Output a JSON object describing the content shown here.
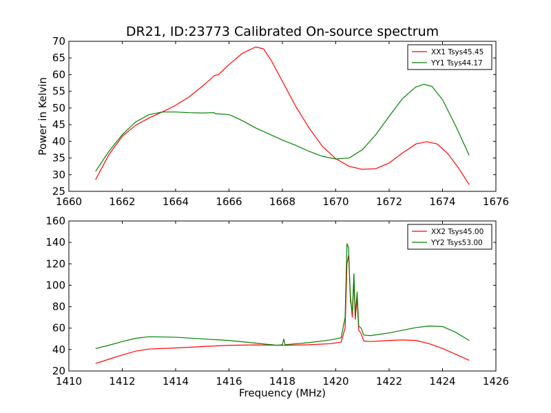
{
  "figure": {
    "title": "DR21, ID:23773 Calibrated On-source spectrum"
  },
  "chart_data": [
    {
      "type": "line",
      "xlabel": "",
      "ylabel": "Power in Kelvin",
      "xlim": [
        1660,
        1676
      ],
      "ylim": [
        25,
        70
      ],
      "xticks": [
        "1660",
        "1662",
        "1664",
        "1666",
        "1668",
        "1670",
        "1672",
        "1674",
        "1676"
      ],
      "yticks": [
        "25",
        "30",
        "35",
        "40",
        "45",
        "50",
        "55",
        "60",
        "65",
        "70"
      ],
      "grid": false,
      "legend_position": "top-right",
      "series": [
        {
          "name": "XX1 Tsys45.45",
          "color": "#ff0000",
          "x": [
            1661.0,
            1661.5,
            1662.0,
            1662.5,
            1663.0,
            1663.5,
            1664.0,
            1664.5,
            1665.0,
            1665.3,
            1665.45,
            1665.6,
            1666.0,
            1666.5,
            1667.0,
            1667.3,
            1667.6,
            1668.0,
            1668.5,
            1669.0,
            1669.5,
            1670.0,
            1670.5,
            1671.0,
            1671.5,
            1672.0,
            1672.5,
            1673.0,
            1673.4,
            1673.8,
            1674.2,
            1674.6,
            1675.0
          ],
          "y": [
            28.5,
            36.0,
            41.5,
            44.8,
            47.0,
            48.8,
            50.8,
            53.3,
            56.5,
            58.6,
            59.7,
            60.0,
            63.0,
            66.4,
            68.3,
            67.7,
            64.0,
            58.0,
            50.5,
            44.0,
            38.5,
            34.8,
            32.5,
            31.6,
            31.8,
            33.5,
            36.5,
            39.2,
            39.9,
            39.2,
            36.3,
            32.0,
            27.0
          ]
        },
        {
          "name": "YY1 Tsys44.17",
          "color": "#008000",
          "x": [
            1661.0,
            1661.5,
            1662.0,
            1662.5,
            1663.0,
            1663.5,
            1664.0,
            1664.5,
            1665.0,
            1665.45,
            1665.5,
            1666.0,
            1666.1,
            1666.5,
            1667.0,
            1667.5,
            1668.0,
            1668.5,
            1669.0,
            1669.5,
            1670.0,
            1670.5,
            1671.0,
            1671.5,
            1672.0,
            1672.5,
            1673.0,
            1673.3,
            1673.6,
            1674.0,
            1674.5,
            1675.0
          ],
          "y": [
            31.0,
            37.0,
            42.0,
            45.8,
            48.0,
            48.8,
            48.8,
            48.6,
            48.5,
            48.6,
            48.3,
            48.0,
            47.7,
            46.2,
            44.0,
            42.2,
            40.4,
            38.8,
            37.0,
            35.5,
            34.7,
            35.0,
            37.5,
            42.0,
            47.5,
            52.8,
            56.3,
            57.1,
            56.5,
            52.5,
            44.5,
            35.8
          ]
        }
      ]
    },
    {
      "type": "line",
      "xlabel": "Frequency (MHz)",
      "ylabel": "",
      "xlim": [
        1410,
        1426
      ],
      "ylim": [
        20,
        160
      ],
      "xticks": [
        "1410",
        "1412",
        "1414",
        "1416",
        "1418",
        "1420",
        "1422",
        "1424",
        "1426"
      ],
      "yticks": [
        "20",
        "40",
        "60",
        "80",
        "100",
        "120",
        "140",
        "160"
      ],
      "grid": false,
      "legend_position": "top-right",
      "series": [
        {
          "name": "XX2 Tsys45.00",
          "color": "#ff0000",
          "x": [
            1411.0,
            1411.5,
            1412.0,
            1412.5,
            1413.0,
            1414.0,
            1415.0,
            1416.0,
            1417.0,
            1418.0,
            1419.0,
            1419.8,
            1420.2,
            1420.35,
            1420.42,
            1420.48,
            1420.55,
            1420.62,
            1420.68,
            1420.73,
            1420.8,
            1420.86,
            1420.95,
            1421.05,
            1421.3,
            1422.0,
            1422.5,
            1423.0,
            1423.5,
            1424.0,
            1424.5,
            1425.0
          ],
          "y": [
            27.0,
            31.0,
            35.0,
            38.5,
            40.5,
            41.5,
            42.8,
            44.0,
            44.3,
            44.0,
            44.5,
            45.5,
            47.0,
            60.0,
            120.0,
            128.0,
            90.0,
            70.0,
            105.0,
            68.0,
            88.0,
            58.0,
            55.0,
            48.0,
            47.5,
            48.5,
            49.0,
            48.5,
            45.5,
            41.0,
            35.5,
            30.0
          ]
        },
        {
          "name": "YY2 Tsys53.00",
          "color": "#008000",
          "x": [
            1411.0,
            1411.5,
            1412.0,
            1412.5,
            1413.0,
            1414.0,
            1415.0,
            1416.0,
            1417.0,
            1417.8,
            1418.0,
            1418.05,
            1418.1,
            1418.3,
            1419.0,
            1419.8,
            1420.2,
            1420.35,
            1420.42,
            1420.48,
            1420.55,
            1420.62,
            1420.68,
            1420.73,
            1420.8,
            1420.86,
            1420.95,
            1421.05,
            1421.3,
            1422.0,
            1422.5,
            1423.0,
            1423.5,
            1424.0,
            1424.5,
            1425.0
          ],
          "y": [
            41.0,
            44.0,
            47.5,
            50.5,
            52.0,
            51.5,
            50.0,
            48.5,
            46.0,
            44.0,
            44.5,
            50.0,
            44.5,
            45.0,
            46.5,
            49.0,
            51.0,
            70.0,
            139.0,
            135.0,
            85.0,
            75.0,
            111.0,
            72.0,
            94.0,
            62.0,
            60.0,
            53.5,
            53.0,
            55.5,
            58.0,
            60.5,
            62.0,
            61.5,
            56.0,
            48.5
          ]
        }
      ]
    }
  ]
}
